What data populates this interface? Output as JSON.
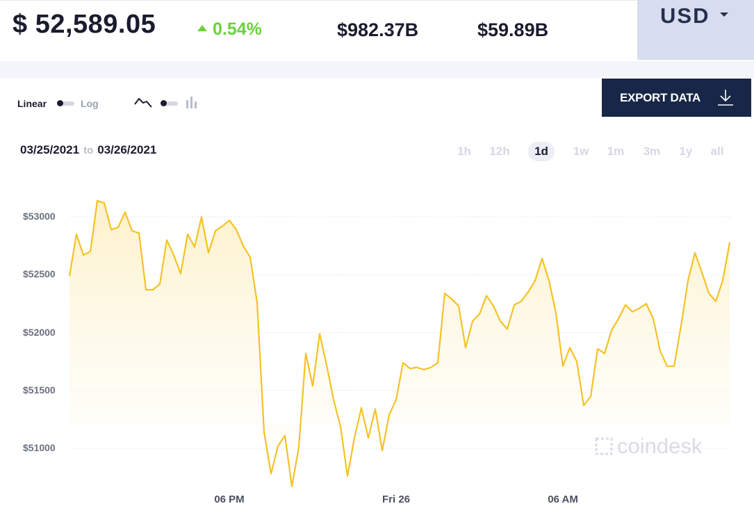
{
  "ticker": {
    "price": "$ 52,589.05",
    "change": "0.54%",
    "market_cap": "$982.37B",
    "volume": "$59.89B",
    "currency": "USD"
  },
  "controls": {
    "scale_on": "Linear",
    "scale_off": "Log",
    "line_icon": "line-chart-icon",
    "bar_icon": "bar-chart-icon",
    "export_label": "EXPORT DATA",
    "export_icon": "download-icon",
    "date_from": "03/25/2021",
    "date_to_word": "to",
    "date_to": "03/26/2021",
    "ranges": [
      "1h",
      "12h",
      "1d",
      "1w",
      "1m",
      "3m",
      "1y",
      "all"
    ],
    "active_range": "1d"
  },
  "colors": {
    "line": "#f5c225",
    "fill_top": "#fdf0c6",
    "positive": "#6ad23b",
    "navy": "#182748"
  },
  "watermark": "coindesk",
  "chart_data": {
    "type": "area",
    "title": "",
    "xlabel": "",
    "ylabel": "",
    "ylim": [
      50750,
      53400
    ],
    "y_ticks": [
      51000,
      51500,
      52000,
      52500,
      53000
    ],
    "y_tick_labels": [
      "$51000",
      "$51500",
      "$52000",
      "$52500",
      "$53000"
    ],
    "x_tick_labels": [
      "06 PM",
      "Fri 26",
      "06 AM"
    ],
    "grid": true,
    "series": [
      {
        "values": [
          52490,
          52850,
          52670,
          52700,
          53140,
          53120,
          52890,
          52910,
          53040,
          52880,
          52860,
          52370,
          52370,
          52420,
          52800,
          52670,
          52510,
          52850,
          52740,
          53000,
          52690,
          52880,
          52920,
          52970,
          52890,
          52750,
          52650,
          52260,
          51140,
          50780,
          51020,
          51110,
          50670,
          51010,
          51820,
          51540,
          51990,
          51720,
          51420,
          51190,
          50760,
          51090,
          51350,
          51090,
          51340,
          50980,
          51290,
          51420,
          51740,
          51690,
          51700,
          51680,
          51700,
          51740,
          52340,
          52290,
          52230,
          51870,
          52100,
          52160,
          52320,
          52230,
          52100,
          52030,
          52240,
          52270,
          52350,
          52450,
          52640,
          52450,
          52170,
          51710,
          51870,
          51750,
          51370,
          51450,
          51860,
          51820,
          52020,
          52120,
          52240,
          52180,
          52210,
          52250,
          52120,
          51840,
          51710,
          51710,
          52060,
          52450,
          52690,
          52520,
          52340,
          52270,
          52450,
          52780
        ]
      }
    ]
  }
}
